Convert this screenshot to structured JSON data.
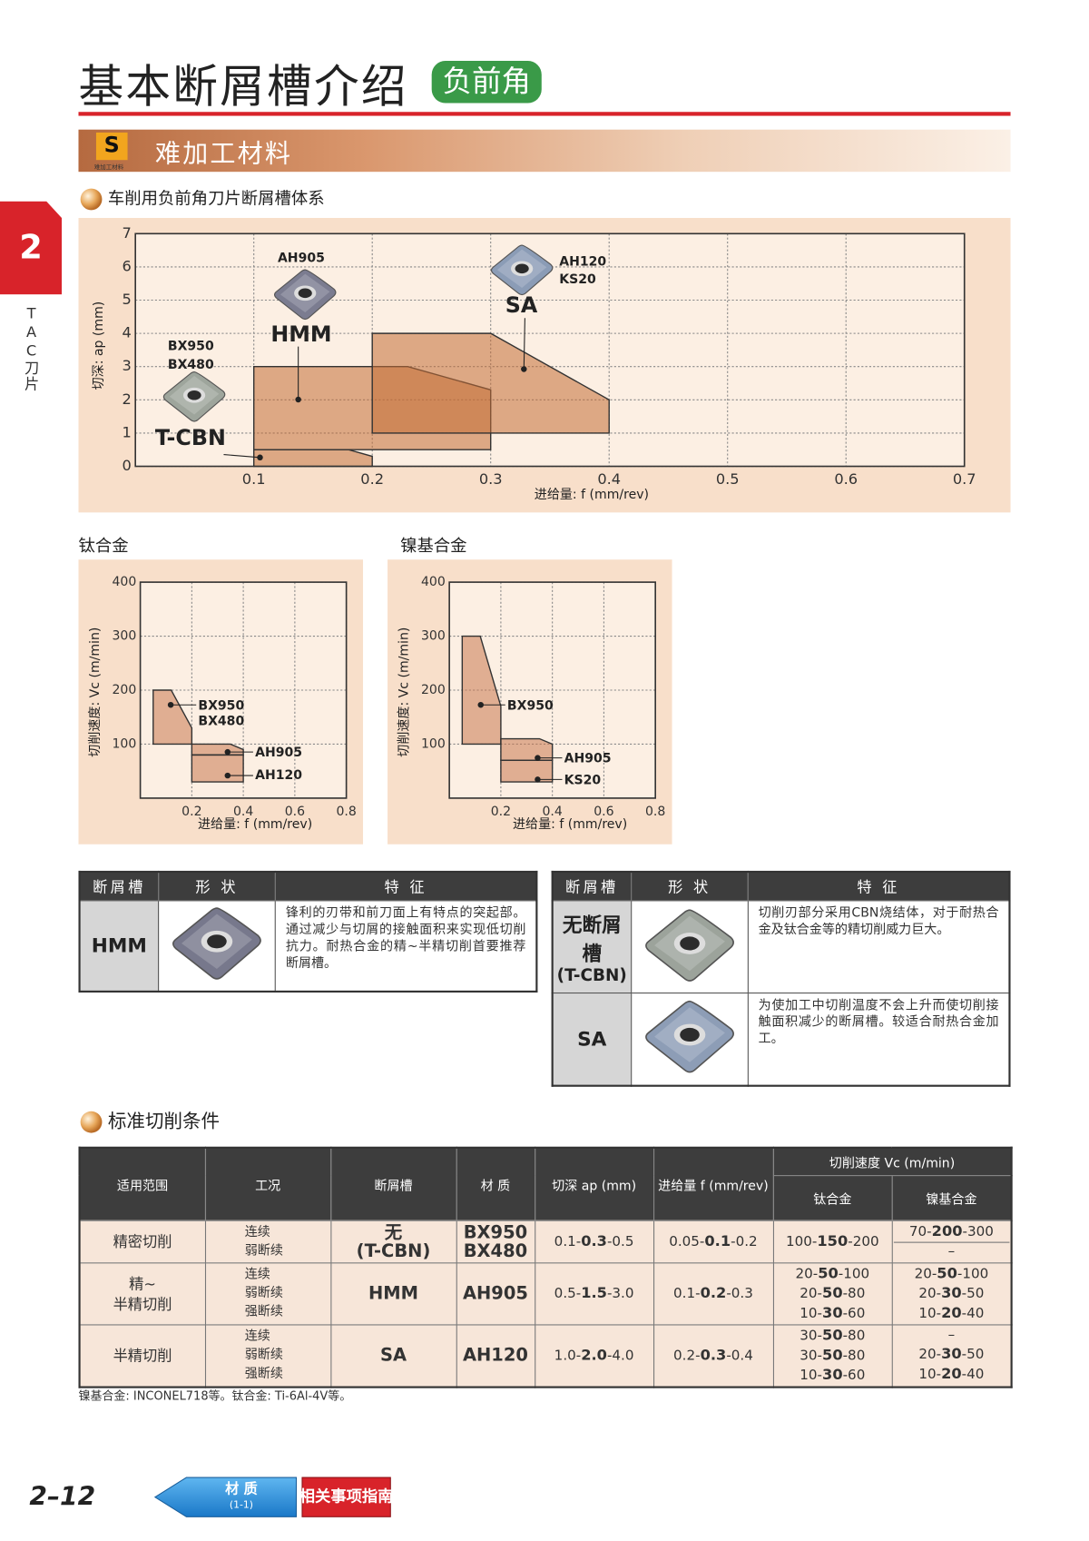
{
  "header": {
    "title": "基本断屑槽介绍",
    "badge": "负前角"
  },
  "side_tab": {
    "number": "2",
    "label": "TAC刀片"
  },
  "section": {
    "icon": "S",
    "icon_caption": "难加工材料",
    "title": "难加工材料"
  },
  "chart_data": [
    {
      "type": "region",
      "title": "车削用负前角刀片断屑槽体系",
      "xlabel": "进给量: f (mm/rev)",
      "ylabel": "切深: ap (mm)",
      "xlim": [
        0,
        0.7
      ],
      "ylim": [
        0,
        7
      ],
      "xticks": [
        0.1,
        0.2,
        0.3,
        0.4,
        0.5,
        0.6,
        0.7
      ],
      "yticks": [
        0,
        1,
        2,
        3,
        4,
        5,
        6,
        7
      ],
      "grid": true,
      "regions": [
        {
          "name": "T-CBN",
          "labels": [
            "BX950",
            "BX480"
          ],
          "x": [
            0.1,
            0.1,
            0.18,
            0.2,
            0.2
          ],
          "y": [
            0,
            0.5,
            0.5,
            0.3,
            0
          ]
        },
        {
          "name": "HMM",
          "labels": [
            "AH905"
          ],
          "x": [
            0.1,
            0.1,
            0.23,
            0.3,
            0.3
          ],
          "y": [
            0.5,
            3,
            3,
            2.3,
            0.5
          ]
        },
        {
          "name": "SA",
          "labels": [
            "AH120",
            "KS20"
          ],
          "x": [
            0.2,
            0.2,
            0.3,
            0.4,
            0.4
          ],
          "y": [
            1,
            4,
            4,
            2,
            1
          ]
        }
      ]
    },
    {
      "type": "region",
      "title": "钛合金",
      "xlabel": "进给量: f (mm/rev)",
      "ylabel": "切削速度: Vc (m/min)",
      "xlim": [
        0,
        0.8
      ],
      "ylim": [
        0,
        400
      ],
      "xticks": [
        0.2,
        0.4,
        0.6,
        0.8
      ],
      "yticks": [
        100,
        200,
        300,
        400
      ],
      "grid": true,
      "regions": [
        {
          "labels": [
            "BX950",
            "BX480"
          ],
          "x": [
            0.05,
            0.05,
            0.12,
            0.2,
            0.2
          ],
          "y": [
            100,
            200,
            200,
            130,
            100
          ]
        },
        {
          "labels": [
            "AH905"
          ],
          "x": [
            0.2,
            0.2,
            0.35,
            0.4,
            0.4
          ],
          "y": [
            80,
            100,
            100,
            90,
            80
          ]
        },
        {
          "labels": [
            "AH120"
          ],
          "x": [
            0.2,
            0.2,
            0.4,
            0.4
          ],
          "y": [
            30,
            80,
            80,
            30
          ]
        }
      ]
    },
    {
      "type": "region",
      "title": "镍基合金",
      "xlabel": "进给量: f (mm/rev)",
      "ylabel": "切削速度: Vc (m/min)",
      "xlim": [
        0,
        0.8
      ],
      "ylim": [
        0,
        400
      ],
      "xticks": [
        0.2,
        0.4,
        0.6,
        0.8
      ],
      "yticks": [
        100,
        200,
        300,
        400
      ],
      "grid": true,
      "regions": [
        {
          "labels": [
            "BX950"
          ],
          "x": [
            0.05,
            0.05,
            0.12,
            0.2,
            0.2
          ],
          "y": [
            100,
            300,
            300,
            170,
            100
          ]
        },
        {
          "labels": [
            "AH905"
          ],
          "x": [
            0.2,
            0.2,
            0.35,
            0.4,
            0.4
          ],
          "y": [
            70,
            110,
            110,
            100,
            70
          ]
        },
        {
          "labels": [
            "KS20"
          ],
          "x": [
            0.2,
            0.2,
            0.4,
            0.4
          ],
          "y": [
            30,
            70,
            70,
            30
          ]
        }
      ]
    }
  ],
  "features": {
    "left": {
      "header": [
        "断屑槽",
        "形 状",
        "特 征"
      ],
      "rows": [
        {
          "groove": [
            "HMM"
          ],
          "text": "锋利的刃带和前刀面上有特点的突起部。通过减少与切屑的接触面积来实现低切削抗力。耐热合金的精~半精切削首要推荐断屑槽。"
        }
      ]
    },
    "right": {
      "header": [
        "断屑槽",
        "形 状",
        "特 征"
      ],
      "rows": [
        {
          "groove": [
            "无断屑槽",
            "(T-CBN)"
          ],
          "text": "切削刃部分采用CBN烧结体，对于耐热合金及钛合金等的精切削威力巨大。"
        },
        {
          "groove": [
            "SA"
          ],
          "text": "为使加工中切削温度不会上升而使切削接触面积减少的断屑槽。较适合耐热合金加工。"
        }
      ]
    }
  },
  "conditions": {
    "heading": "标准切削条件",
    "header": [
      "适用范围",
      "工况",
      "断屑槽",
      "材 质",
      "切深 ap (mm)",
      "进给量 f (mm/rev)"
    ],
    "speed_header": "切削速度 Vc (m/min)",
    "speed_columns": [
      "钛合金",
      "镍基合金"
    ],
    "rows": [
      {
        "scope": [
          "精密切削"
        ],
        "cond": [
          "连续",
          "弱断续"
        ],
        "groove": [
          "无",
          "(T-CBN)"
        ],
        "grade": [
          "BX950",
          "BX480"
        ],
        "ap": [
          "0.1-",
          "0.3",
          "-0.5"
        ],
        "f": [
          "0.05-",
          "0.1",
          "-0.2"
        ],
        "ti": [
          [
            "100-",
            "150",
            "-200"
          ]
        ],
        "ni": [
          [
            "70-",
            "200",
            "-300"
          ],
          [
            "–"
          ]
        ]
      },
      {
        "scope": [
          "精~",
          "半精切削"
        ],
        "cond": [
          "连续",
          "弱断续",
          "强断续"
        ],
        "groove": [
          "HMM"
        ],
        "grade": [
          "AH905"
        ],
        "ap": [
          "0.5-",
          "1.5",
          "-3.0"
        ],
        "f": [
          "0.1-",
          "0.2",
          "-0.3"
        ],
        "ti": [
          [
            "20-",
            "50",
            "-100"
          ],
          [
            "20-",
            "50",
            "-80"
          ],
          [
            "10-",
            "30",
            "-60"
          ]
        ],
        "ni": [
          [
            "20-",
            "50",
            "-100"
          ],
          [
            "20-",
            "30",
            "-50"
          ],
          [
            "10-",
            "20",
            "-40"
          ]
        ]
      },
      {
        "scope": [
          "半精切削"
        ],
        "cond": [
          "连续",
          "弱断续",
          "强断续"
        ],
        "groove": [
          "SA"
        ],
        "grade": [
          "AH120"
        ],
        "ap": [
          "1.0-",
          "2.0",
          "-4.0"
        ],
        "f": [
          "0.2-",
          "0.3",
          "-0.4"
        ],
        "ti": [
          [
            "30-",
            "50",
            "-80"
          ],
          [
            "30-",
            "50",
            "-80"
          ],
          [
            "10-",
            "30",
            "-60"
          ]
        ],
        "ni": [
          [
            "–"
          ],
          [
            "20-",
            "30",
            "-50"
          ],
          [
            "10-",
            "20",
            "-40"
          ]
        ]
      }
    ],
    "note": "镍基合金: INCONEL718等。钛合金: Ti-6Al-4V等。"
  },
  "footer": {
    "page": "2–12",
    "nav_label": "材 质",
    "nav_sub": "(1-1)",
    "guide": "相关事项指南"
  }
}
